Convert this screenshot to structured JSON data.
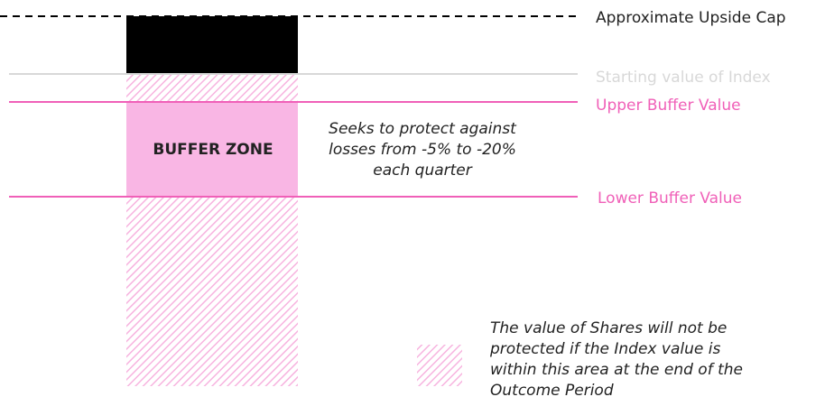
{
  "labels": {
    "upside_cap": "Approximate Upside Cap",
    "starting_value": "Starting value of Index",
    "upper_buffer": "Upper Buffer Value",
    "lower_buffer": "Lower Buffer Value"
  },
  "buffer_zone": {
    "title": "BUFFER ZONE",
    "description": [
      "Seeks to protect against",
      "losses from -5% to -20%",
      "each quarter"
    ]
  },
  "legend": {
    "text": [
      "The value of Shares will not be",
      "protected if the Index value is",
      "within this area at the end of the",
      "Outcome Period"
    ]
  }
}
